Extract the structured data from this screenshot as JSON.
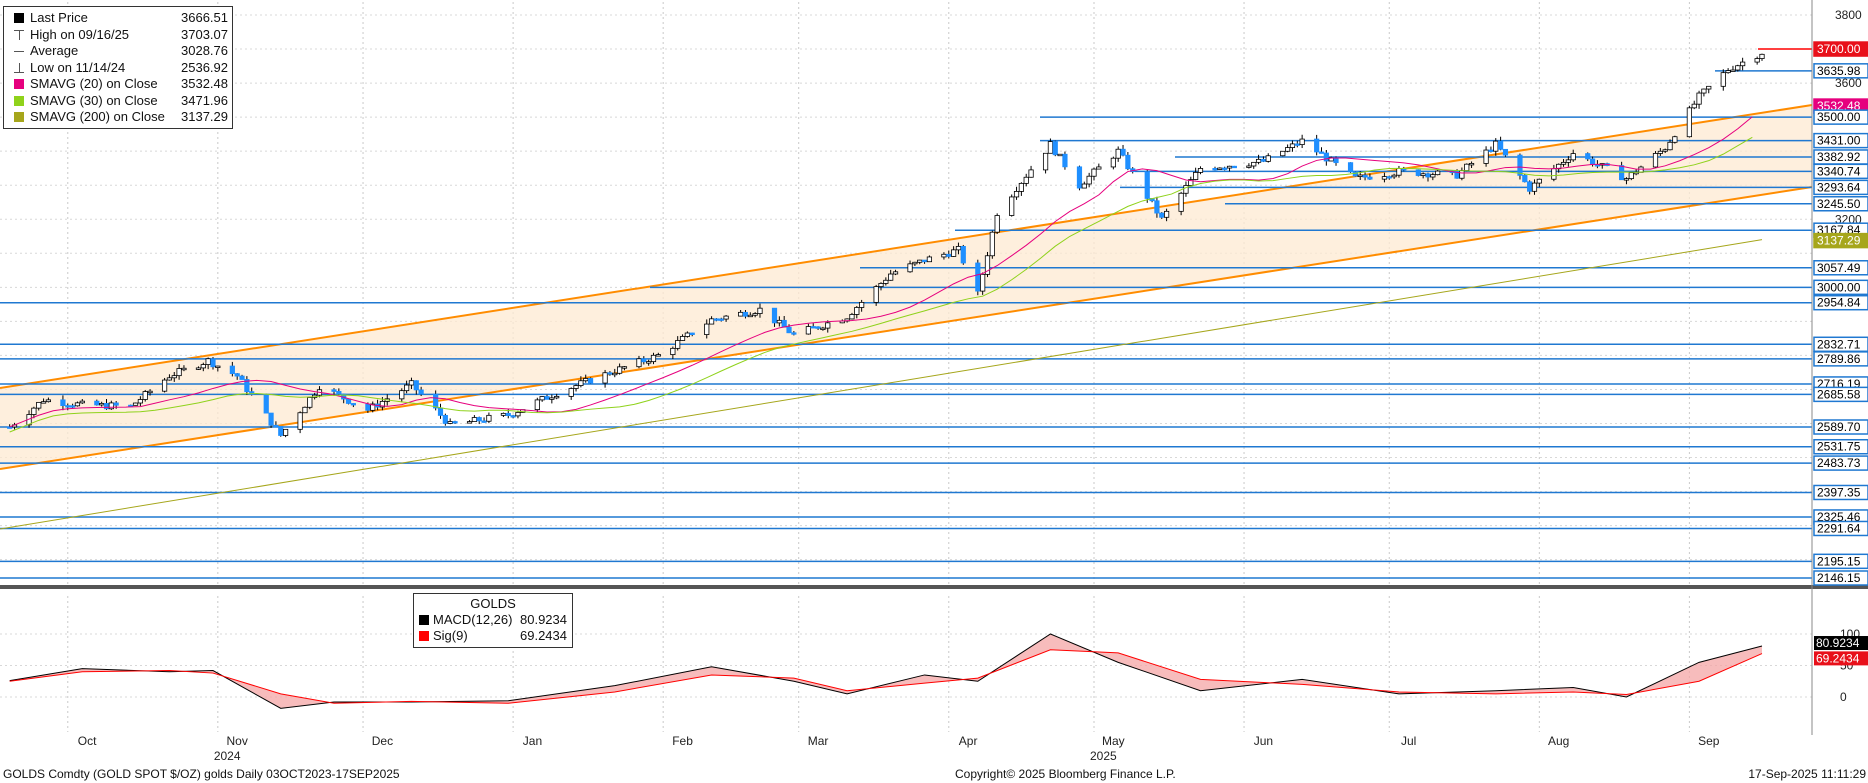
{
  "legend": [
    {
      "label": "Last Price",
      "value": "3666.51",
      "color": "#000000",
      "marker": "box"
    },
    {
      "label": "High on 09/16/25",
      "value": "3703.07",
      "color": "#555555",
      "marker": "high"
    },
    {
      "label": "Average",
      "value": "3028.76",
      "color": "#555555",
      "marker": "avg"
    },
    {
      "label": "Low on 11/14/24",
      "value": "2536.92",
      "color": "#555555",
      "marker": "low"
    },
    {
      "label": "SMAVG (20)  on Close",
      "value": "3532.48",
      "color": "#e6007e",
      "marker": "box"
    },
    {
      "label": "SMAVG (30)  on Close",
      "value": "3471.96",
      "color": "#8fd21b",
      "marker": "box"
    },
    {
      "label": "SMAVG (200)  on Close",
      "value": "3137.29",
      "color": "#a6a61b",
      "marker": "box"
    }
  ],
  "macd_legend": {
    "title": "GOLDS",
    "rows": [
      {
        "label": "MACD(12,26)",
        "value": "80.9234",
        "color": "#000000"
      },
      {
        "label": "Sig(9)",
        "value": "69.2434",
        "color": "#ff0000"
      }
    ]
  },
  "footer": {
    "left": "GOLDS Comdty (GOLD SPOT $/OZ) golds  Daily 03OCT2023-17SEP2025",
    "center": "Copyright© 2025 Bloomberg Finance L.P.",
    "right": "17-Sep-2025 11:11:29"
  },
  "chart_data": {
    "type": "candlestick",
    "price_axis_ticks": [
      3800,
      3600,
      3200
    ],
    "macd_axis_ticks": [
      100,
      50,
      0
    ],
    "x_months": [
      "Oct",
      "Nov",
      "Dec",
      "Jan",
      "Feb",
      "Mar",
      "Apr",
      "May",
      "Jun",
      "Jul",
      "Aug",
      "Sep"
    ],
    "x_years": [
      {
        "label": "2024",
        "under": "Nov"
      },
      {
        "label": "2025",
        "under": "May"
      }
    ],
    "level_labels": [
      {
        "value": 3700.0,
        "color": "#ff0000"
      },
      {
        "value": 3635.98,
        "color": "#1f78d1"
      },
      {
        "value": 3532.48,
        "color": "#e6007e"
      },
      {
        "value": 3500.0,
        "color": "#1f78d1"
      },
      {
        "value": 3431.0,
        "color": "#1f78d1"
      },
      {
        "value": 3382.92,
        "color": "#1f78d1"
      },
      {
        "value": 3340.74,
        "color": "#1f78d1"
      },
      {
        "value": 3293.64,
        "color": "#1f78d1"
      },
      {
        "value": 3245.5,
        "color": "#1f78d1"
      },
      {
        "value": 3167.84,
        "color": "#1f78d1"
      },
      {
        "value": 3137.29,
        "color": "#a6a61b"
      },
      {
        "value": 3057.49,
        "color": "#1f78d1"
      },
      {
        "value": 3000.0,
        "color": "#1f78d1"
      },
      {
        "value": 2954.84,
        "color": "#1f78d1"
      },
      {
        "value": 2832.71,
        "color": "#1f78d1"
      },
      {
        "value": 2789.86,
        "color": "#1f78d1"
      },
      {
        "value": 2716.19,
        "color": "#1f78d1"
      },
      {
        "value": 2685.58,
        "color": "#1f78d1"
      },
      {
        "value": 2589.7,
        "color": "#1f78d1"
      },
      {
        "value": 2531.75,
        "color": "#1f78d1"
      },
      {
        "value": 2483.73,
        "color": "#1f78d1"
      },
      {
        "value": 2397.35,
        "color": "#1f78d1"
      },
      {
        "value": 2325.46,
        "color": "#1f78d1"
      },
      {
        "value": 2291.64,
        "color": "#1f78d1"
      },
      {
        "value": 2195.15,
        "color": "#1f78d1"
      },
      {
        "value": 2146.15,
        "color": "#1f78d1"
      }
    ],
    "macd_labels": [
      {
        "value": "80.9234",
        "color": "#000000"
      },
      {
        "value": "69.2434",
        "color": "#ff0000"
      }
    ],
    "price_series": [
      [
        "2024-09-19",
        2590
      ],
      [
        "2024-09-26",
        2670
      ],
      [
        "2024-10-04",
        2655
      ],
      [
        "2024-10-14",
        2650
      ],
      [
        "2024-10-22",
        2740
      ],
      [
        "2024-10-30",
        2785
      ],
      [
        "2024-11-05",
        2740
      ],
      [
        "2024-11-14",
        2565
      ],
      [
        "2024-11-22",
        2710
      ],
      [
        "2024-12-02",
        2640
      ],
      [
        "2024-12-11",
        2715
      ],
      [
        "2024-12-19",
        2595
      ],
      [
        "2024-12-31",
        2625
      ],
      [
        "2025-01-10",
        2690
      ],
      [
        "2025-01-22",
        2755
      ],
      [
        "2025-01-31",
        2800
      ],
      [
        "2025-02-11",
        2905
      ],
      [
        "2025-02-21",
        2935
      ],
      [
        "2025-02-28",
        2860
      ],
      [
        "2025-03-11",
        2915
      ],
      [
        "2025-03-20",
        3040
      ],
      [
        "2025-03-27",
        3080
      ],
      [
        "2025-04-03",
        3110
      ],
      [
        "2025-04-07",
        2980
      ],
      [
        "2025-04-11",
        3220
      ],
      [
        "2025-04-22",
        3420
      ],
      [
        "2025-04-28",
        3300
      ],
      [
        "2025-05-06",
        3400
      ],
      [
        "2025-05-15",
        3200
      ],
      [
        "2025-05-23",
        3350
      ],
      [
        "2025-06-05",
        3370
      ],
      [
        "2025-06-13",
        3430
      ],
      [
        "2025-06-24",
        3320
      ],
      [
        "2025-07-03",
        3340
      ],
      [
        "2025-07-15",
        3330
      ],
      [
        "2025-07-23",
        3420
      ],
      [
        "2025-07-30",
        3290
      ],
      [
        "2025-08-08",
        3395
      ],
      [
        "2025-08-19",
        3320
      ],
      [
        "2025-08-27",
        3410
      ],
      [
        "2025-09-03",
        3560
      ],
      [
        "2025-09-09",
        3640
      ],
      [
        "2025-09-16",
        3690
      ]
    ],
    "macd": [
      [
        "2024-09-19",
        26
      ],
      [
        "2024-10-04",
        45
      ],
      [
        "2024-10-22",
        40
      ],
      [
        "2024-10-31",
        42
      ],
      [
        "2024-11-14",
        -18
      ],
      [
        "2024-11-25",
        -8
      ],
      [
        "2024-12-11",
        -8
      ],
      [
        "2024-12-31",
        -6
      ],
      [
        "2025-01-22",
        18
      ],
      [
        "2025-02-11",
        48
      ],
      [
        "2025-02-28",
        25
      ],
      [
        "2025-03-11",
        5
      ],
      [
        "2025-03-27",
        35
      ],
      [
        "2025-04-07",
        25
      ],
      [
        "2025-04-22",
        100
      ],
      [
        "2025-05-06",
        55
      ],
      [
        "2025-05-23",
        10
      ],
      [
        "2025-06-13",
        28
      ],
      [
        "2025-07-03",
        5
      ],
      [
        "2025-07-23",
        10
      ],
      [
        "2025-08-08",
        15
      ],
      [
        "2025-08-19",
        0
      ],
      [
        "2025-09-03",
        55
      ],
      [
        "2025-09-16",
        81
      ]
    ],
    "signal": [
      [
        "2024-09-19",
        25
      ],
      [
        "2024-10-04",
        40
      ],
      [
        "2024-10-22",
        42
      ],
      [
        "2024-10-31",
        38
      ],
      [
        "2024-11-14",
        5
      ],
      [
        "2024-11-25",
        -10
      ],
      [
        "2024-12-11",
        -7
      ],
      [
        "2024-12-31",
        -10
      ],
      [
        "2025-01-22",
        8
      ],
      [
        "2025-02-11",
        35
      ],
      [
        "2025-02-28",
        30
      ],
      [
        "2025-03-11",
        10
      ],
      [
        "2025-03-27",
        22
      ],
      [
        "2025-04-07",
        30
      ],
      [
        "2025-04-22",
        75
      ],
      [
        "2025-05-06",
        70
      ],
      [
        "2025-05-23",
        28
      ],
      [
        "2025-06-13",
        20
      ],
      [
        "2025-07-03",
        8
      ],
      [
        "2025-07-23",
        5
      ],
      [
        "2025-08-08",
        8
      ],
      [
        "2025-08-19",
        4
      ],
      [
        "2025-09-03",
        25
      ],
      [
        "2025-09-16",
        69
      ]
    ],
    "grid": true
  }
}
